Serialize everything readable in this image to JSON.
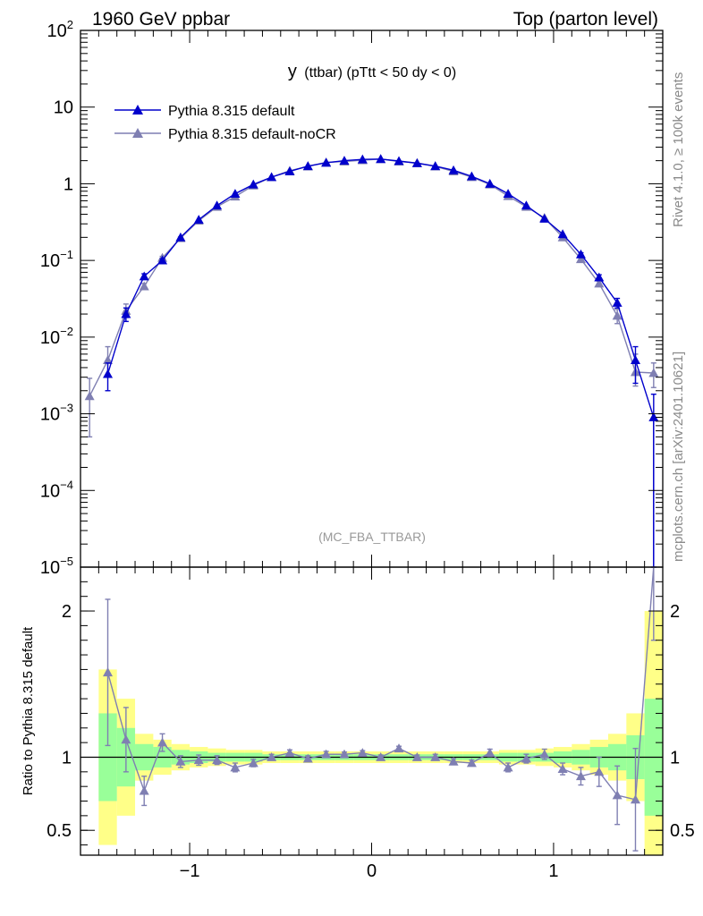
{
  "header": {
    "left": "1960 GeV ppbar",
    "right": "Top (parton level)"
  },
  "side_labels": {
    "rivet": "Rivet 4.1.0, ≥ 100k events",
    "mcplots": "mcplots.cern.ch [arXiv:2401.10621]"
  },
  "colors": {
    "series1": "#0000cc",
    "series2": "#7f7fb2",
    "band_inner": "#99ff99",
    "band_outer": "#ffff88"
  },
  "chart_data": [
    {
      "type": "line",
      "title": "y (ttbar) (pTtt < 50 dy < 0)",
      "title_main": "y",
      "title_rest": "(ttbar) (pTtt < 50 dy < 0)",
      "watermark": "(MC_FBA_TTBAR)",
      "yscale": "log",
      "xlim": [
        -1.6,
        1.6
      ],
      "ylim": [
        1e-05,
        100
      ],
      "yticks": [
        {
          "v": 100,
          "base": "10",
          "exp": "2"
        },
        {
          "v": 10,
          "base": "10",
          "exp": ""
        },
        {
          "v": 1,
          "base": "1",
          "exp": ""
        },
        {
          "v": 0.1,
          "base": "10",
          "exp": "−1"
        },
        {
          "v": 0.01,
          "base": "10",
          "exp": "−2"
        },
        {
          "v": 0.001,
          "base": "10",
          "exp": "−3"
        },
        {
          "v": 0.0001,
          "base": "10",
          "exp": "−4"
        },
        {
          "v": 1e-05,
          "base": "10",
          "exp": "−5"
        }
      ],
      "legend_position": "top-left",
      "series": [
        {
          "name": "Pythia 8.315 default",
          "x": [
            -1.45,
            -1.35,
            -1.25,
            -1.15,
            -1.05,
            -0.95,
            -0.85,
            -0.75,
            -0.65,
            -0.55,
            -0.45,
            -0.35,
            -0.25,
            -0.15,
            -0.05,
            0.05,
            0.15,
            0.25,
            0.35,
            0.45,
            0.55,
            0.65,
            0.75,
            0.85,
            0.95,
            1.05,
            1.15,
            1.25,
            1.35,
            1.45,
            1.55
          ],
          "y": [
            0.0033,
            0.02,
            0.062,
            0.1,
            0.2,
            0.34,
            0.52,
            0.74,
            0.98,
            1.22,
            1.45,
            1.7,
            1.88,
            2.0,
            2.08,
            2.1,
            1.98,
            1.85,
            1.7,
            1.5,
            1.25,
            1.0,
            0.74,
            0.52,
            0.35,
            0.22,
            0.12,
            0.06,
            0.028,
            0.005,
            0.0009
          ],
          "yerr_low": [
            0.0013,
            0.004,
            0.005,
            0.005,
            0.008,
            0.01,
            0.012,
            0.015,
            0.02,
            0.02,
            0.02,
            0.02,
            0.02,
            0.02,
            0.02,
            0.02,
            0.02,
            0.02,
            0.02,
            0.02,
            0.02,
            0.02,
            0.015,
            0.012,
            0.01,
            0.008,
            0.006,
            0.005,
            0.004,
            0.0025,
            0.0009
          ],
          "yerr_high": [
            0.0013,
            0.004,
            0.005,
            0.005,
            0.008,
            0.01,
            0.012,
            0.015,
            0.02,
            0.02,
            0.02,
            0.02,
            0.02,
            0.02,
            0.02,
            0.02,
            0.02,
            0.02,
            0.02,
            0.02,
            0.02,
            0.02,
            0.015,
            0.012,
            0.01,
            0.008,
            0.006,
            0.005,
            0.004,
            0.0025,
            0.0009
          ]
        },
        {
          "name": "Pythia 8.315 default-noCR",
          "x": [
            -1.55,
            -1.45,
            -1.35,
            -1.25,
            -1.15,
            -1.05,
            -0.95,
            -0.85,
            -0.75,
            -0.65,
            -0.55,
            -0.45,
            -0.35,
            -0.25,
            -0.15,
            -0.05,
            0.05,
            0.15,
            0.25,
            0.35,
            0.45,
            0.55,
            0.65,
            0.75,
            0.85,
            0.95,
            1.05,
            1.15,
            1.25,
            1.35,
            1.45,
            1.55
          ],
          "y": [
            0.0017,
            0.005,
            0.022,
            0.046,
            0.108,
            0.195,
            0.33,
            0.5,
            0.68,
            0.95,
            1.22,
            1.48,
            1.68,
            1.9,
            1.95,
            2.03,
            2.1,
            1.95,
            1.87,
            1.68,
            1.45,
            1.22,
            0.98,
            0.69,
            0.5,
            0.36,
            0.2,
            0.104,
            0.05,
            0.019,
            0.0035,
            0.0034
          ],
          "yerr_low": [
            0.0012,
            0.002,
            0.004,
            0.004,
            0.005,
            0.008,
            0.01,
            0.012,
            0.015,
            0.02,
            0.02,
            0.02,
            0.02,
            0.02,
            0.02,
            0.02,
            0.02,
            0.02,
            0.02,
            0.02,
            0.02,
            0.02,
            0.02,
            0.015,
            0.012,
            0.01,
            0.008,
            0.005,
            0.004,
            0.004,
            0.0012,
            0.0012
          ],
          "yerr_high": [
            0.0012,
            0.0025,
            0.005,
            0.004,
            0.005,
            0.008,
            0.01,
            0.012,
            0.015,
            0.02,
            0.02,
            0.02,
            0.02,
            0.02,
            0.02,
            0.02,
            0.02,
            0.02,
            0.02,
            0.02,
            0.02,
            0.02,
            0.02,
            0.015,
            0.012,
            0.01,
            0.008,
            0.005,
            0.004,
            0.004,
            0.0025,
            0.0012
          ]
        }
      ]
    },
    {
      "type": "line",
      "ylabel": "Ratio to Pythia 8.315 default",
      "xlim": [
        -1.6,
        1.6
      ],
      "ylim": [
        0.33,
        2.3
      ],
      "xticks": [
        {
          "v": -1,
          "label": "−1"
        },
        {
          "v": 0,
          "label": "0"
        },
        {
          "v": 1,
          "label": "1"
        }
      ],
      "yticks": [
        {
          "v": 0.5,
          "label": "0.5"
        },
        {
          "v": 1,
          "label": "1"
        },
        {
          "v": 2,
          "label": "2"
        }
      ],
      "reference_line": 1,
      "bands": {
        "x_lo": [
          -1.5,
          -1.4,
          -1.3,
          -1.2,
          -1.1,
          -1.0,
          -0.9,
          -0.8,
          -0.7,
          -0.6,
          -0.5,
          -0.4,
          -0.3,
          -0.2,
          -0.1,
          0.0,
          0.1,
          0.2,
          0.3,
          0.4,
          0.5,
          0.6,
          0.7,
          0.8,
          0.9,
          1.0,
          1.1,
          1.2,
          1.3,
          1.4,
          1.5
        ],
        "x_hi": [
          -1.4,
          -1.3,
          -1.2,
          -1.1,
          -1.0,
          -0.9,
          -0.8,
          -0.7,
          -0.6,
          -0.5,
          -0.4,
          -0.3,
          -0.2,
          -0.1,
          0.0,
          0.1,
          0.2,
          0.3,
          0.4,
          0.5,
          0.6,
          0.7,
          0.8,
          0.9,
          1.0,
          1.1,
          1.2,
          1.3,
          1.4,
          1.5,
          1.6
        ],
        "inner": [
          0.3,
          0.2,
          0.09,
          0.07,
          0.05,
          0.04,
          0.03,
          0.03,
          0.03,
          0.02,
          0.02,
          0.02,
          0.02,
          0.02,
          0.02,
          0.02,
          0.02,
          0.02,
          0.02,
          0.02,
          0.02,
          0.02,
          0.03,
          0.03,
          0.03,
          0.04,
          0.05,
          0.07,
          0.09,
          0.15,
          0.4
        ],
        "outer": [
          0.6,
          0.4,
          0.16,
          0.12,
          0.09,
          0.07,
          0.06,
          0.05,
          0.05,
          0.04,
          0.04,
          0.04,
          0.04,
          0.04,
          0.04,
          0.04,
          0.04,
          0.04,
          0.04,
          0.04,
          0.04,
          0.04,
          0.05,
          0.05,
          0.06,
          0.07,
          0.09,
          0.12,
          0.16,
          0.3,
          1.0
        ]
      },
      "series": [
        {
          "name": "Pythia 8.315 default-noCR",
          "x": [
            -1.45,
            -1.35,
            -1.25,
            -1.15,
            -1.05,
            -0.95,
            -0.85,
            -0.75,
            -0.65,
            -0.55,
            -0.45,
            -0.35,
            -0.25,
            -0.15,
            -0.05,
            0.05,
            0.15,
            0.25,
            0.35,
            0.45,
            0.55,
            0.65,
            0.75,
            0.85,
            0.95,
            1.05,
            1.15,
            1.25,
            1.35,
            1.45,
            1.55
          ],
          "y": [
            1.58,
            1.12,
            0.77,
            1.1,
            0.97,
            0.98,
            0.98,
            0.93,
            0.96,
            1.0,
            1.03,
            0.99,
            1.02,
            1.02,
            1.03,
            1.0,
            1.06,
            1.0,
            1.0,
            0.97,
            0.96,
            1.03,
            0.93,
            0.99,
            1.02,
            0.92,
            0.87,
            0.9,
            0.74,
            0.71,
            2.3
          ],
          "yerr": [
            0.5,
            0.22,
            0.1,
            0.06,
            0.04,
            0.035,
            0.03,
            0.03,
            0.025,
            0.02,
            0.02,
            0.02,
            0.02,
            0.015,
            0.015,
            0.015,
            0.015,
            0.015,
            0.02,
            0.02,
            0.02,
            0.025,
            0.03,
            0.03,
            0.035,
            0.04,
            0.06,
            0.1,
            0.2,
            0.35,
            0.5
          ]
        }
      ]
    }
  ]
}
